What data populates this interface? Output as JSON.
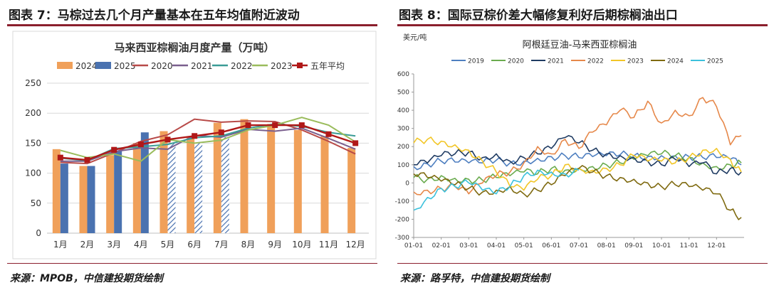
{
  "left": {
    "figure_title": "图表 7：马棕过去几个月产量基本在五年均值附近波动",
    "source": "来源：MPOB，中信建投期货绘制",
    "chart_data": {
      "type": "bar",
      "title": "马来西亚棕榈油月度产量（万吨）",
      "xlabel": "",
      "ylabel": "",
      "categories": [
        "1月",
        "2月",
        "3月",
        "4月",
        "5月",
        "6月",
        "7月",
        "8月",
        "9月",
        "10月",
        "11月",
        "12月"
      ],
      "ylim": [
        0,
        250
      ],
      "yticks": [
        0,
        50,
        100,
        150,
        200,
        250
      ],
      "grid": true,
      "legend_position": "top",
      "bar_series": [
        {
          "name": "2024",
          "color": "#f0a05a",
          "values": [
            140,
            112,
            130,
            150,
            170,
            160,
            184,
            190,
            182,
            172,
            162,
            142
          ]
        },
        {
          "name": "2025",
          "color": "#4a72b0",
          "values": [
            116,
            112,
            137,
            168,
            150,
            150,
            160,
            null,
            null,
            null,
            null,
            null
          ],
          "hatched_from_index": 4
        }
      ],
      "line_series": [
        {
          "name": "2020",
          "color": "#b84a48",
          "values": [
            118,
            116,
            134,
            153,
            164,
            190,
            185,
            187,
            186,
            172,
            153,
            132
          ]
        },
        {
          "name": "2021",
          "color": "#7a5f8e",
          "values": [
            120,
            120,
            136,
            142,
            140,
            163,
            160,
            173,
            170,
            175,
            158,
            140
          ]
        },
        {
          "name": "2022",
          "color": "#3a9c96",
          "values": [
            125,
            121,
            141,
            144,
            148,
            159,
            162,
            175,
            182,
            178,
            168,
            162
          ]
        },
        {
          "name": "2023",
          "color": "#9abc5c",
          "values": [
            138,
            126,
            132,
            120,
            156,
            150,
            155,
            172,
            180,
            193,
            180,
            152
          ]
        },
        {
          "name": "五年平均",
          "color": "#b01818",
          "marker": "square",
          "values": [
            126,
            122,
            139,
            148,
            156,
            162,
            168,
            180,
            180,
            180,
            165,
            150
          ]
        }
      ]
    }
  },
  "right": {
    "figure_title": "图表 8：国际豆棕价差大幅修复利好后期棕榈油出口",
    "source": "来源：路孚特，中信建投期货绘制",
    "chart_data": {
      "type": "line",
      "title": "阿根廷豆油-马来西亚棕榈油",
      "ylabel": "美元/吨",
      "xlabel": "",
      "x_ticks": [
        "01-01",
        "02-01",
        "03-01",
        "04-01",
        "05-01",
        "06-01",
        "07-01",
        "08-01",
        "09-01",
        "10-01",
        "11-01",
        "12-01"
      ],
      "ylim": [
        -300,
        600
      ],
      "yticks": [
        -300,
        -200,
        -100,
        0,
        100,
        200,
        300,
        400,
        500,
        600
      ],
      "grid": false,
      "legend_position": "top",
      "x_months": [
        0,
        0.5,
        1,
        1.5,
        2,
        2.5,
        3,
        3.5,
        4,
        4.5,
        5,
        5.5,
        6,
        6.5,
        7,
        7.5,
        8,
        8.5,
        9,
        9.5,
        10,
        10.5,
        11,
        11.5,
        11.9
      ],
      "series": [
        {
          "name": "2019",
          "color": "#4e7fc0",
          "values": [
            90,
            105,
            120,
            115,
            110,
            110,
            125,
            110,
            120,
            135,
            145,
            150,
            140,
            145,
            150,
            155,
            150,
            145,
            150,
            150,
            145,
            140,
            140,
            130,
            100
          ]
        },
        {
          "name": "2020",
          "color": "#6aab4e",
          "values": [
            30,
            20,
            40,
            25,
            20,
            15,
            30,
            40,
            60,
            50,
            80,
            70,
            80,
            90,
            100,
            110,
            130,
            150,
            160,
            150,
            140,
            110,
            90,
            100,
            110
          ]
        },
        {
          "name": "2021",
          "color": "#1f3b62",
          "values": [
            100,
            110,
            150,
            160,
            170,
            140,
            160,
            120,
            140,
            160,
            190,
            250,
            220,
            180,
            160,
            150,
            140,
            120,
            100,
            130,
            90,
            110,
            50,
            80,
            60
          ]
        },
        {
          "name": "2022",
          "color": "#e6884a",
          "values": [
            -50,
            -40,
            -30,
            -20,
            -60,
            0,
            40,
            60,
            110,
            200,
            160,
            240,
            190,
            280,
            320,
            400,
            360,
            450,
            330,
            400,
            370,
            470,
            420,
            210,
            260
          ]
        },
        {
          "name": "2023",
          "color": "#f2c627",
          "values": [
            220,
            240,
            230,
            210,
            180,
            120,
            60,
            -20,
            -40,
            20,
            40,
            100,
            80,
            70,
            80,
            100,
            150,
            120,
            120,
            110,
            140,
            180,
            190,
            130,
            60
          ]
        },
        {
          "name": "2024",
          "color": "#7f6a10",
          "values": [
            50,
            30,
            10,
            -10,
            -30,
            -50,
            -40,
            -20,
            -60,
            -40,
            -10,
            40,
            80,
            60,
            40,
            30,
            20,
            0,
            -20,
            -10,
            -20,
            -40,
            -60,
            -150,
            -190
          ]
        },
        {
          "name": "2025",
          "color": "#3cc1dc",
          "values": [
            -150,
            -80,
            -30,
            -20,
            0,
            -40,
            -60,
            -20,
            40,
            70,
            60,
            50,
            70,
            null,
            null,
            null,
            null,
            null,
            null,
            null,
            null,
            null,
            null,
            null,
            null
          ]
        }
      ]
    }
  }
}
